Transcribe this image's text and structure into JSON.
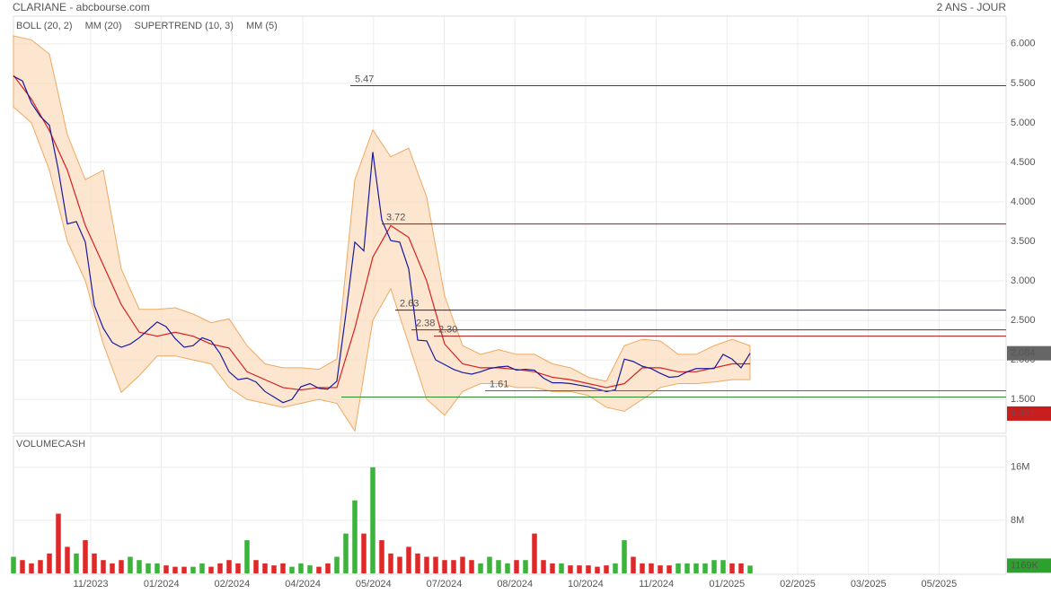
{
  "header": {
    "title": "CLARIANE - abcbourse.com",
    "period": "2 ANS - JOUR"
  },
  "chart_data": [
    {
      "type": "line",
      "ylim": [
        1.07,
        6.35
      ],
      "yticks": [
        {
          "value": 1.5,
          "label": "1.500"
        },
        {
          "value": 2,
          "label": "2.000"
        },
        {
          "value": 2.5,
          "label": "2.500"
        },
        {
          "value": 3,
          "label": "3.000"
        },
        {
          "value": 3.5,
          "label": "3.500"
        },
        {
          "value": 4,
          "label": "4.000"
        },
        {
          "value": 4.5,
          "label": "4.500"
        },
        {
          "value": 5,
          "label": "5.000"
        },
        {
          "value": 5.5,
          "label": "5.500"
        },
        {
          "value": 6,
          "label": "6.000"
        }
      ],
      "grid": true,
      "series": [
        {
          "name": "BOLL (20, 2)",
          "color": "#f0a860",
          "upper": [
            6.1,
            6.05,
            5.87,
            4.85,
            4.28,
            4.4,
            3.15,
            2.64,
            2.64,
            2.66,
            2.58,
            2.47,
            2.52,
            2.18,
            1.95,
            1.9,
            1.9,
            1.88,
            2.01,
            4.28,
            4.91,
            4.57,
            4.68,
            4.06,
            2.81,
            2.18,
            2.07,
            2.13,
            2.07,
            2.07,
            1.95,
            1.9,
            1.78,
            1.73,
            2.18,
            2.26,
            2.24,
            2.07,
            2.07,
            2.18,
            2.26,
            2.18
          ],
          "lower": [
            5.2,
            5.0,
            4.4,
            3.5,
            3.0,
            2.2,
            1.59,
            1.8,
            2.05,
            2.05,
            2.0,
            1.95,
            1.65,
            1.5,
            1.45,
            1.4,
            1.45,
            1.5,
            1.45,
            1.1,
            2.5,
            2.9,
            2.2,
            1.5,
            1.3,
            1.6,
            1.7,
            1.7,
            1.65,
            1.65,
            1.6,
            1.6,
            1.55,
            1.4,
            1.35,
            1.5,
            1.65,
            1.7,
            1.7,
            1.72,
            1.75,
            1.75
          ]
        },
        {
          "name": "MM (20)",
          "color": "#d62020",
          "values": [
            5.6,
            5.3,
            4.9,
            4.4,
            3.7,
            3.2,
            2.7,
            2.35,
            2.3,
            2.35,
            2.3,
            2.2,
            2.15,
            1.85,
            1.75,
            1.65,
            1.62,
            1.65,
            1.65,
            2.4,
            3.3,
            3.7,
            3.55,
            3.0,
            2.2,
            1.95,
            1.9,
            1.9,
            1.88,
            1.85,
            1.78,
            1.75,
            1.7,
            1.65,
            1.7,
            1.9,
            1.9,
            1.85,
            1.85,
            1.9,
            1.95,
            1.95
          ]
        },
        {
          "name": "SUPERTREND (10, 3)",
          "color": "#f4a0a0"
        },
        {
          "name": "MM (5)",
          "color": "#1a1a9e",
          "values": [
            5.59,
            5.53,
            5.25,
            5.08,
            4.97,
            4.4,
            3.72,
            3.75,
            3.49,
            2.69,
            2.4,
            2.22,
            2.16,
            2.2,
            2.28,
            2.38,
            2.48,
            2.42,
            2.27,
            2.16,
            2.18,
            2.28,
            2.24,
            2.08,
            1.85,
            1.75,
            1.77,
            1.72,
            1.6,
            1.53,
            1.46,
            1.5,
            1.66,
            1.7,
            1.64,
            1.63,
            1.73,
            2.58,
            3.49,
            3.38,
            4.63,
            3.77,
            3.51,
            3.49,
            3.15,
            2.25,
            2.24,
            2.0,
            1.94,
            1.88,
            1.84,
            1.82,
            1.85,
            1.89,
            1.91,
            1.92,
            1.87,
            1.88,
            1.87,
            1.77,
            1.71,
            1.71,
            1.7,
            1.68,
            1.66,
            1.63,
            1.6,
            1.62,
            2.01,
            1.98,
            1.92,
            1.89,
            1.83,
            1.78,
            1.79,
            1.85,
            1.89,
            1.89,
            1.89,
            2.07,
            2.01,
            1.9,
            2.084
          ]
        }
      ],
      "levels": [
        {
          "value": 5.47,
          "color": "#a31515"
        },
        {
          "value": 3.72,
          "color": "#a31515"
        },
        {
          "value": 2.63,
          "color": "#1a1aa0"
        },
        {
          "value": 2.38,
          "color": "#a31515"
        },
        {
          "value": 2.3,
          "label": "2.30",
          "color": "#a31515"
        },
        {
          "value": 1.61,
          "color": "#2e8b2e"
        },
        {
          "value": 1.53,
          "color": "#2e8b2e"
        }
      ],
      "price_tags": [
        {
          "value": 2.084,
          "color": "#666666"
        },
        {
          "value": 1.321,
          "color": "#c81e1e"
        }
      ]
    },
    {
      "type": "bar",
      "title": "VOLUMECASH",
      "ylim": [
        0,
        20700000
      ],
      "yticks": [
        {
          "value": 8000000,
          "label": "8M"
        },
        {
          "value": 16000000,
          "label": "16M"
        }
      ],
      "grid": true,
      "up_color": "#3cb43c",
      "down_color": "#e02828",
      "values": [
        2500000,
        2000000,
        1500000,
        2000000,
        3000000,
        9000000,
        4000000,
        3000000,
        5000000,
        3000000,
        2000000,
        1500000,
        2000000,
        2500000,
        2000000,
        1500000,
        1500000,
        1200000,
        1000000,
        1000000,
        1000000,
        1500000,
        1000000,
        1500000,
        2000000,
        1500000,
        5000000,
        2000000,
        1500000,
        1200000,
        1500000,
        1000000,
        1500000,
        1200000,
        1000000,
        1500000,
        2500000,
        6000000,
        11000000,
        6000000,
        16000000,
        5000000,
        3000000,
        2500000,
        4000000,
        3000000,
        2500000,
        2500000,
        2000000,
        2000000,
        2500000,
        2000000,
        1500000,
        2500000,
        2000000,
        1500000,
        2000000,
        2000000,
        6000000,
        2000000,
        1500000,
        1500000,
        1200000,
        1200000,
        1200000,
        1000000,
        1200000,
        1500000,
        5000000,
        2500000,
        1500000,
        1500000,
        1200000,
        1200000,
        1500000,
        1500000,
        1500000,
        1500000,
        2000000,
        2000000,
        1500000,
        1500000,
        1169000
      ],
      "tag": {
        "value": 1169000,
        "label": "1169K",
        "color": "#2ea02e"
      },
      "x_axis_labels": [
        "11/2023",
        "01/2024",
        "02/2024",
        "04/2024",
        "05/2024",
        "07/2024",
        "08/2024",
        "10/2024",
        "11/2024",
        "01/2025",
        "02/2025",
        "03/2025",
        "05/2025"
      ]
    }
  ]
}
